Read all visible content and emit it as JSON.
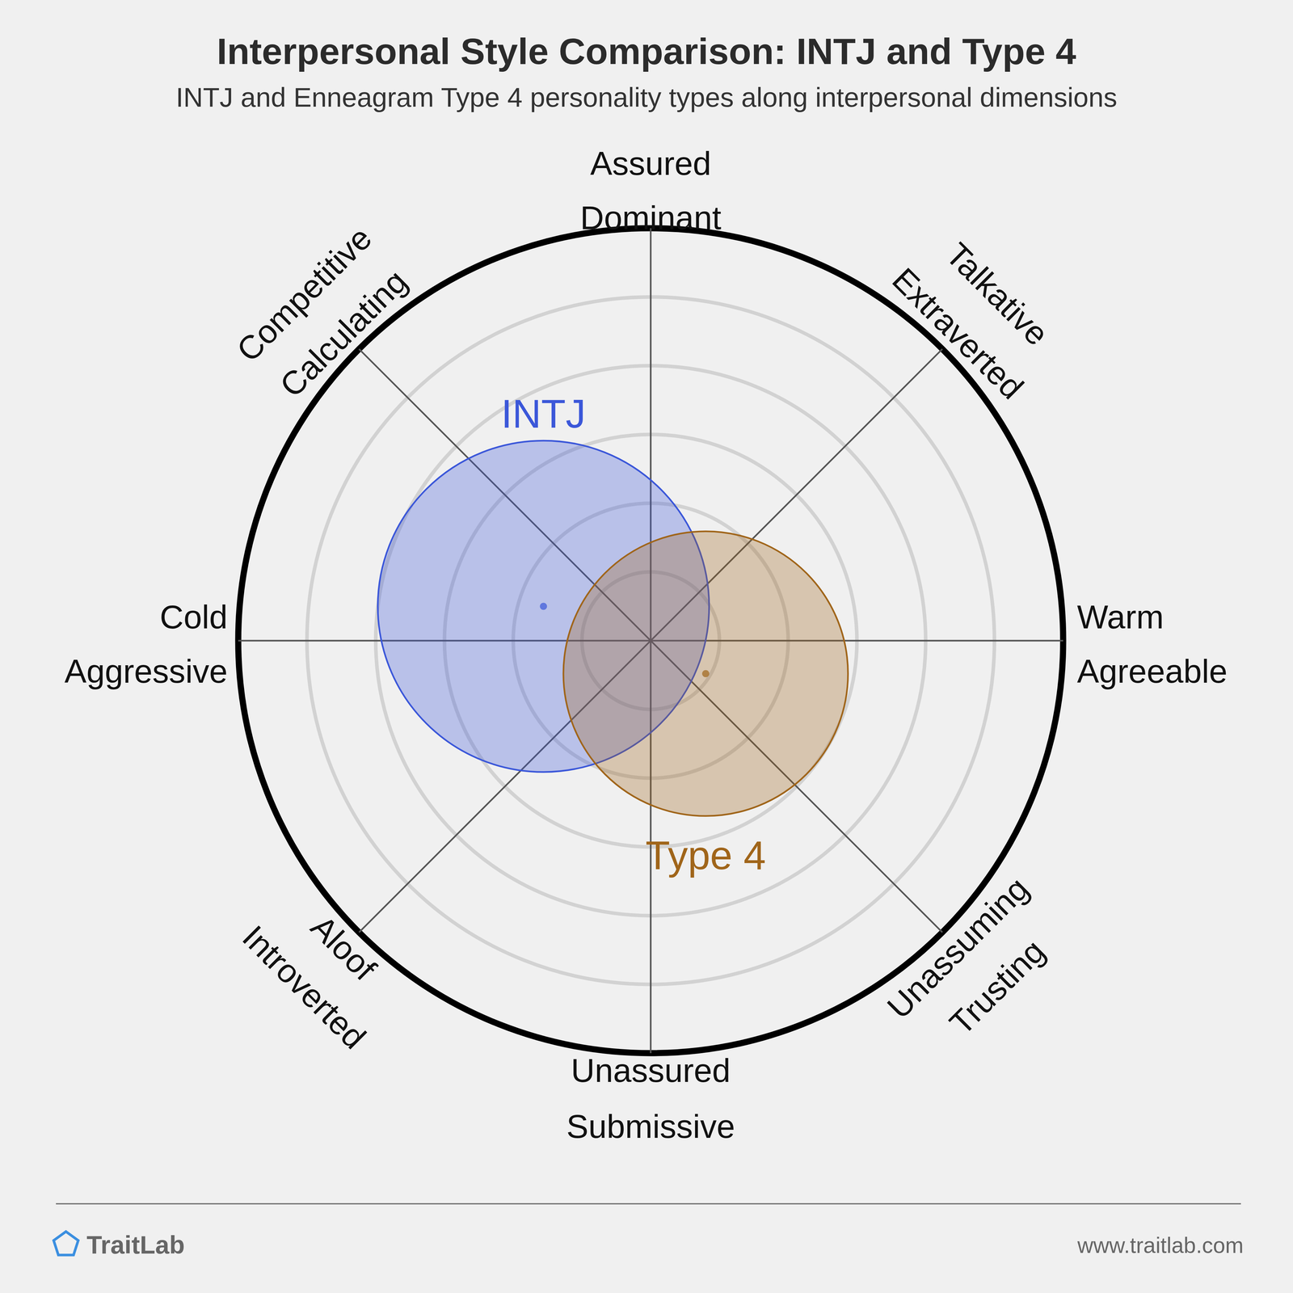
{
  "chart_data": {
    "type": "circumplex",
    "title": "Interpersonal Style Comparison: INTJ and Type 4",
    "subtitle": "INTJ and Enneagram Type 4 personality types along interpersonal dimensions",
    "axis_labels": [
      [
        "Assured",
        "Dominant"
      ],
      [
        "Talkative",
        "Extraverted"
      ],
      [
        "Warm",
        "Agreeable"
      ],
      [
        "Unassuming",
        "Trusting"
      ],
      [
        "Unassured",
        "Submissive"
      ],
      [
        "Aloof",
        "Introverted"
      ],
      [
        "Cold",
        "Aggressive"
      ],
      [
        "Competitive",
        "Calculating"
      ]
    ],
    "xlim": [
      -6,
      6
    ],
    "ylim": [
      -6,
      6
    ],
    "xticks": [
      1,
      2,
      3,
      4,
      5,
      6
    ],
    "grid": true,
    "tick_labels": false,
    "series": [
      {
        "name": "INTJ",
        "color": "#3b57d9",
        "x": [
          -1.56
        ],
        "values": [
          0.5
        ],
        "size": [
          2.41
        ]
      },
      {
        "name": "Type 4",
        "color": "#a0651a",
        "x": [
          0.8
        ],
        "values": [
          -0.48
        ],
        "size": [
          2.07
        ]
      }
    ],
    "footer": {
      "brand": "TraitLab",
      "url": "www.traitlab.com"
    }
  }
}
